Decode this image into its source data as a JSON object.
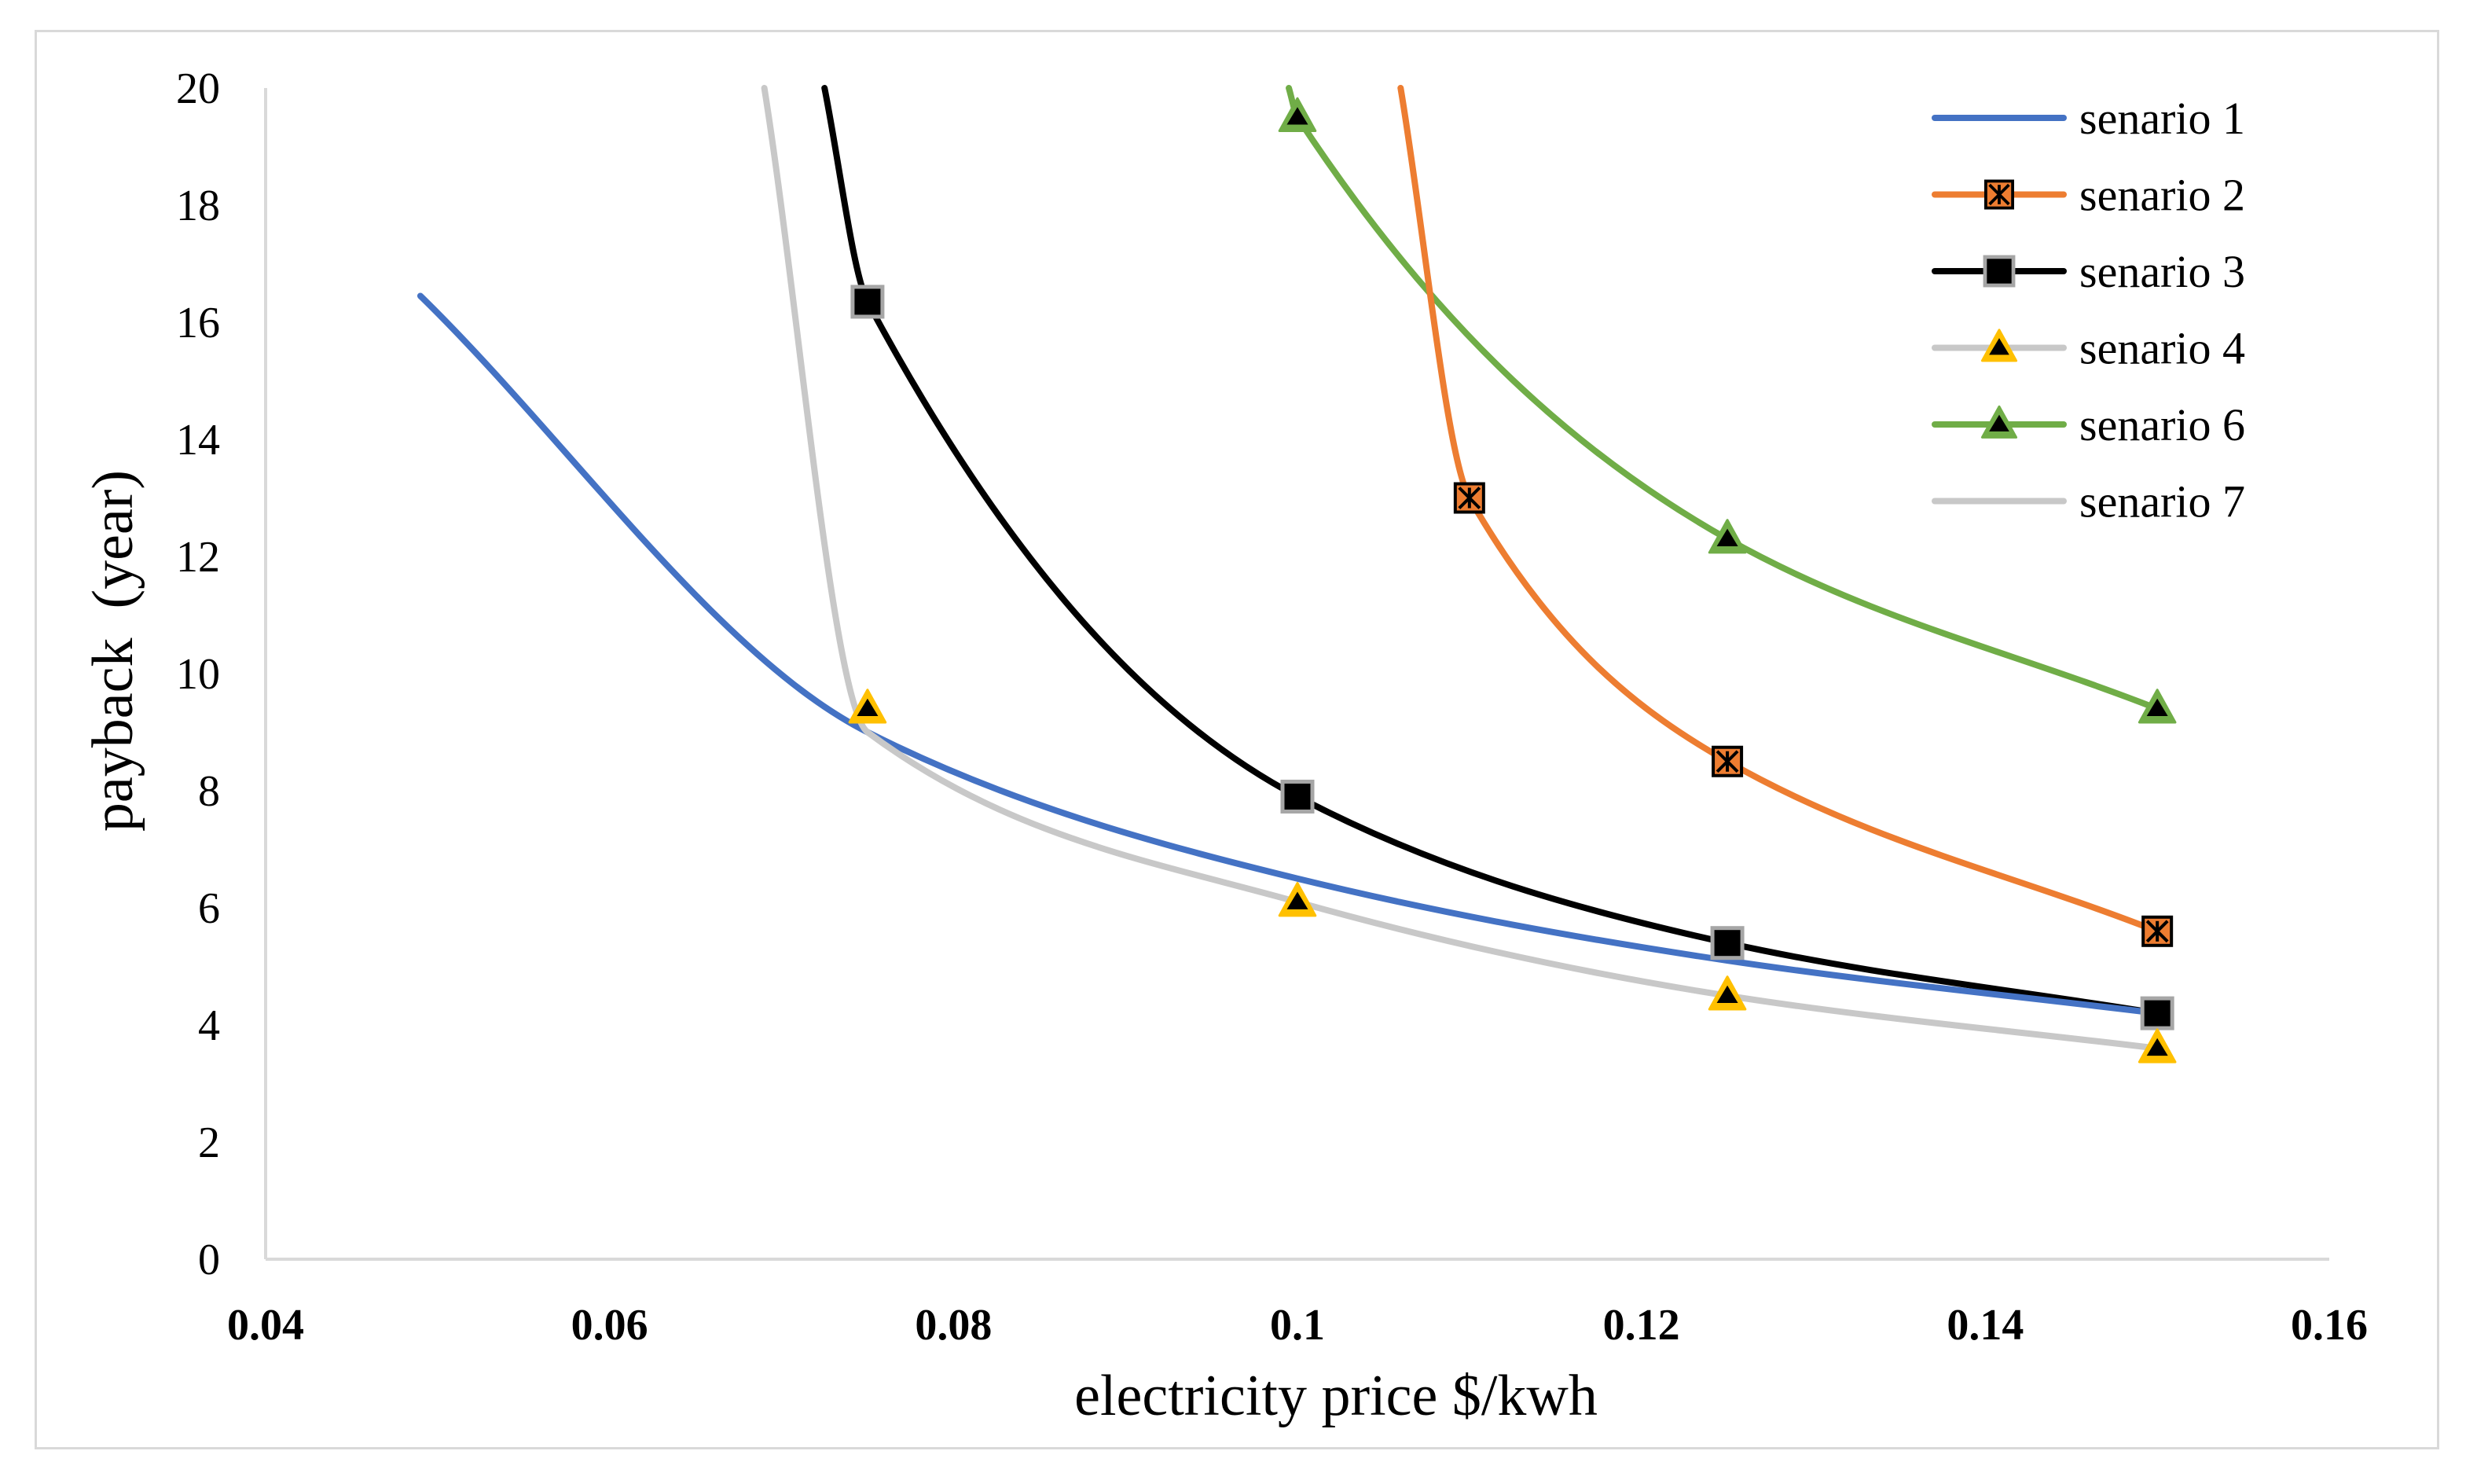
{
  "chart_data": {
    "type": "line",
    "title": "",
    "xlabel": "electricity price $/kwh",
    "ylabel": "payback  (year)",
    "xlim": [
      0.04,
      0.16
    ],
    "ylim": [
      0,
      20
    ],
    "x_ticks": [
      0.04,
      0.06,
      0.08,
      0.1,
      0.12,
      0.14,
      0.16
    ],
    "x_tick_labels": [
      "0.04",
      "0.06",
      "0.08",
      "0.1",
      "0.12",
      "0.14",
      "0.16"
    ],
    "y_ticks": [
      0,
      2,
      4,
      6,
      8,
      10,
      12,
      14,
      16,
      18,
      20
    ],
    "y_tick_labels": [
      "0",
      "2",
      "4",
      "6",
      "8",
      "10",
      "12",
      "14",
      "16",
      "18",
      "20"
    ],
    "grid": false,
    "legend_position": "top-right",
    "series": [
      {
        "name": "senario 1",
        "color": "#4472c4",
        "marker": "none",
        "x": [
          0.049,
          0.075,
          0.1,
          0.125,
          0.15
        ],
        "y": [
          16.45,
          9.0,
          6.5,
          5.1,
          4.2
        ]
      },
      {
        "name": "senario 2",
        "color": "#ed7d31",
        "marker": "star-square",
        "marker_fill": "#ed7d31",
        "marker_stroke": "#000000",
        "x": [
          0.106,
          0.11,
          0.125,
          0.15
        ],
        "y": [
          20.0,
          13.0,
          8.5,
          5.6
        ],
        "marker_x": [
          0.11,
          0.125,
          0.15
        ],
        "marker_y": [
          13.0,
          8.5,
          5.6
        ]
      },
      {
        "name": "senario 3",
        "color": "#000000",
        "marker": "square",
        "marker_fill": "#000000",
        "marker_stroke": "#a6a6a6",
        "x": [
          0.0725,
          0.075,
          0.1,
          0.125,
          0.15
        ],
        "y": [
          20.0,
          16.35,
          7.9,
          5.4,
          4.2
        ],
        "marker_x": [
          0.075,
          0.1,
          0.125,
          0.15
        ],
        "marker_y": [
          16.35,
          7.9,
          5.4,
          4.2
        ]
      },
      {
        "name": "senario 4",
        "color": "#c8c8c8",
        "marker": "triangle",
        "marker_fill": "#ffc000",
        "marker_stroke": "#ffc000",
        "marker_inner": "#000000",
        "line_in_legend": true,
        "x": [],
        "y": [],
        "marker_x": [
          0.075,
          0.1,
          0.125,
          0.15
        ],
        "marker_y": [
          9.4,
          6.1,
          4.5,
          3.6
        ]
      },
      {
        "name": "senario 6",
        "color": "#70ad47",
        "marker": "triangle",
        "marker_fill": "#70ad47",
        "marker_stroke": "#70ad47",
        "marker_inner": "#000000",
        "x": [
          0.0995,
          0.1,
          0.125,
          0.15
        ],
        "y": [
          20.0,
          19.5,
          12.3,
          9.4
        ],
        "marker_x": [
          0.1,
          0.125,
          0.15
        ],
        "marker_y": [
          19.5,
          12.3,
          9.4
        ]
      },
      {
        "name": "senario 7",
        "color": "#c8c8c8",
        "marker": "none",
        "x": [
          0.069,
          0.075,
          0.1,
          0.125,
          0.15
        ],
        "y": [
          20.0,
          9.0,
          6.1,
          4.5,
          3.6
        ]
      }
    ]
  }
}
